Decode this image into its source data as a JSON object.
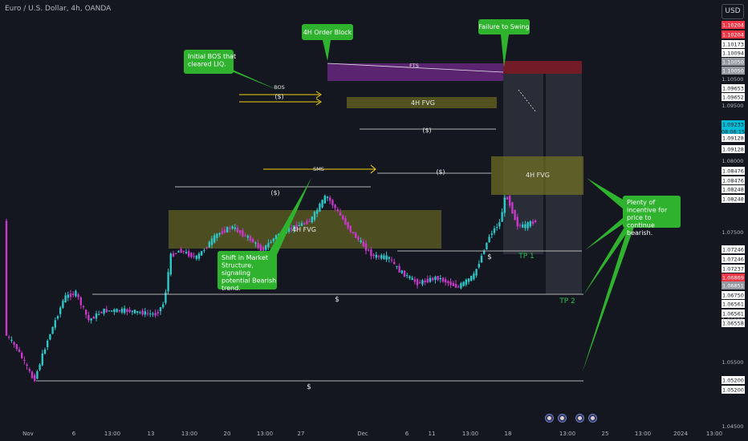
{
  "header": {
    "symbol_title": "Euro / U.S. Dollar, 4h, OANDA",
    "currency_button": "USD"
  },
  "colors": {
    "background": "#141720",
    "bull_candle": "#2ec7c7",
    "bear_candle": "#c938c9",
    "annotation_green": "#2fb32f",
    "fvg_fill": "#7a7a20",
    "ob_fill": "#8a2da8",
    "sell_zone": "#8b1e2b",
    "highlight_price": "#f23645",
    "current_price": "#00bcd4"
  },
  "chart_data": {
    "type": "candlestick",
    "instrument": "EURUSD",
    "timeframe": "4h",
    "x_tick_labels": [
      "Nov",
      "6",
      "13:00",
      "13",
      "13:00",
      "20",
      "13:00",
      "27",
      "Dec",
      "6",
      "11",
      "13:00",
      "18",
      "13:00",
      "25",
      "13:00",
      "2024",
      "13:00"
    ],
    "y_tick_labels": [
      "1.10500",
      "1.09500",
      "1.08000",
      "1.07500",
      "1.06000",
      "1.05500",
      "1.04500"
    ],
    "y_price_tags": [
      {
        "value": "1.10204",
        "style": "red"
      },
      {
        "value": "1.10204",
        "style": "red"
      },
      {
        "value": "1.10173",
        "style": "white"
      },
      {
        "value": "1.10094",
        "style": "white"
      },
      {
        "value": "1.10050",
        "style": "gray"
      },
      {
        "value": "1.10050",
        "style": "gray"
      },
      {
        "value": "1.09653",
        "style": "white"
      },
      {
        "value": "1.09652",
        "style": "white"
      },
      {
        "value": "1.09233",
        "style": "cyan"
      },
      {
        "value": "08:06:15",
        "style": "cyan"
      },
      {
        "value": "1.09128",
        "style": "white"
      },
      {
        "value": "1.09128",
        "style": "white"
      },
      {
        "value": "1.08476",
        "style": "white"
      },
      {
        "value": "1.08476",
        "style": "white"
      },
      {
        "value": "1.08248",
        "style": "white"
      },
      {
        "value": "1.08248",
        "style": "white"
      },
      {
        "value": "1.07246",
        "style": "white"
      },
      {
        "value": "1.07246",
        "style": "white"
      },
      {
        "value": "1.07237",
        "style": "white"
      },
      {
        "value": "1.06869",
        "style": "red"
      },
      {
        "value": "1.06851",
        "style": "gray"
      },
      {
        "value": "1.06750",
        "style": "white"
      },
      {
        "value": "1.06561",
        "style": "white"
      },
      {
        "value": "1.06561",
        "style": "white"
      },
      {
        "value": "1.06558",
        "style": "white"
      },
      {
        "value": "1.05200",
        "style": "white"
      },
      {
        "value": "1.05200",
        "style": "white"
      }
    ],
    "annotations": {
      "order_block": "4H Order Block",
      "failure_to_swing": "Failure to Swing",
      "initial_bos": "Initial BOS that cleared LIQ.",
      "shift_structure": "Shift in Market Structure, signaling potential Bearish trend.",
      "incentive": "Plenty of incentive for price to continue bearish.",
      "fvg_labels": [
        "4H FVG",
        "4H FVG",
        "4H FVG"
      ],
      "bos": "BOS",
      "sms": "SMS",
      "fts": "FTS",
      "liquidity_marks": [
        "($)",
        "($)",
        "($)",
        "($)",
        "$",
        "$",
        "$"
      ],
      "targets": [
        "TP 1",
        "TP 2"
      ]
    },
    "grid": false
  }
}
